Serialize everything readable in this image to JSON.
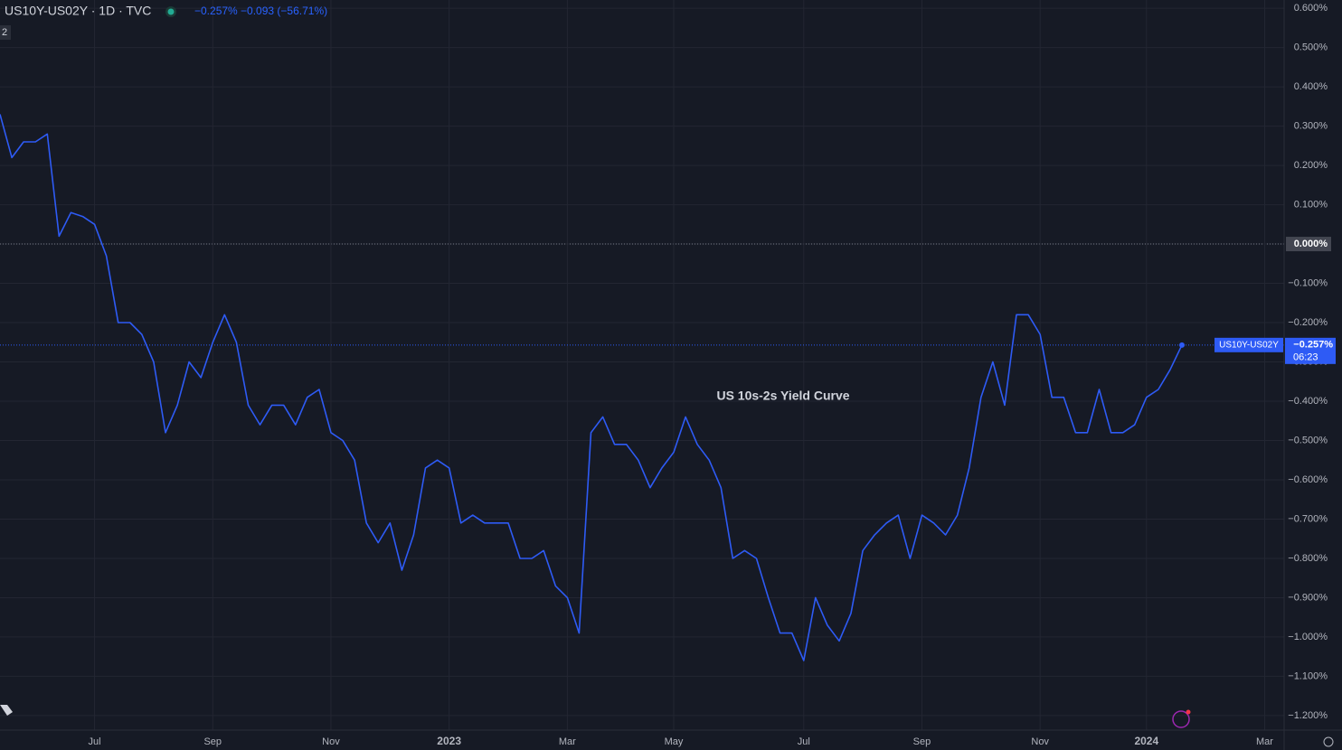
{
  "chart_data": {
    "type": "line",
    "symbol": "US10Y-US02Y · 1D · TVC",
    "change": "−0.257% −0.093 (−56.71%)",
    "pane_label": "2",
    "annotation": "US 10s-2s Yield Curve",
    "last_name": "US10Y-US02Y",
    "last_value_label": "−0.257%",
    "countdown": "06:23",
    "zero_line": true,
    "grid": true,
    "categories": [
      null,
      null,
      null,
      null,
      null,
      null,
      null,
      null,
      "Jul",
      null,
      null,
      null,
      null,
      null,
      null,
      null,
      null,
      null,
      "Sep",
      null,
      null,
      null,
      null,
      null,
      null,
      null,
      null,
      null,
      "Nov",
      null,
      null,
      null,
      null,
      null,
      null,
      null,
      null,
      null,
      "2023",
      null,
      null,
      null,
      null,
      null,
      null,
      null,
      null,
      null,
      "Mar",
      null,
      null,
      null,
      null,
      null,
      null,
      null,
      null,
      "May",
      null,
      null,
      null,
      null,
      null,
      null,
      null,
      null,
      null,
      null,
      "Jul",
      null,
      null,
      null,
      null,
      null,
      null,
      null,
      null,
      null,
      "Sep",
      null,
      null,
      null,
      null,
      null,
      null,
      null,
      null,
      null,
      "Nov",
      null,
      null,
      null,
      null,
      null,
      null,
      null,
      null,
      "2024",
      null,
      null,
      null,
      null,
      null,
      null,
      null,
      null,
      null,
      "Mar",
      null
    ],
    "series": [
      {
        "name": "US10Y-US02Y",
        "color": "#2e5bf5",
        "values": [
          0.33,
          0.22,
          0.26,
          0.26,
          0.28,
          0.02,
          0.08,
          0.07,
          0.05,
          -0.03,
          -0.2,
          -0.2,
          -0.23,
          -0.3,
          -0.48,
          -0.41,
          -0.3,
          -0.34,
          -0.25,
          -0.18,
          -0.25,
          -0.41,
          -0.46,
          -0.41,
          -0.41,
          -0.46,
          -0.39,
          -0.37,
          -0.48,
          -0.5,
          -0.55,
          -0.71,
          -0.76,
          -0.71,
          -0.83,
          -0.74,
          -0.57,
          -0.55,
          -0.57,
          -0.71,
          -0.69,
          -0.71,
          -0.71,
          -0.71,
          -0.8,
          -0.8,
          -0.78,
          -0.87,
          -0.9,
          -0.99,
          -0.48,
          -0.44,
          -0.51,
          -0.51,
          -0.55,
          -0.62,
          -0.57,
          -0.53,
          -0.44,
          -0.51,
          -0.55,
          -0.62,
          -0.8,
          -0.78,
          -0.8,
          -0.9,
          -0.99,
          -0.99,
          -1.06,
          -0.9,
          -0.97,
          -1.01,
          -0.94,
          -0.78,
          -0.74,
          -0.71,
          -0.69,
          -0.8,
          -0.69,
          -0.71,
          -0.74,
          -0.69,
          -0.57,
          -0.39,
          -0.3,
          -0.41,
          -0.18,
          -0.18,
          -0.23,
          -0.39,
          -0.39,
          -0.48,
          -0.48,
          -0.37,
          -0.48,
          -0.48,
          -0.46,
          -0.39,
          -0.37,
          -0.32,
          -0.257,
          null,
          null,
          null,
          null,
          null,
          null,
          null,
          null
        ]
      }
    ],
    "ylim": [
      -1.237,
      0.621
    ],
    "yticks": [
      {
        "value": 0.6,
        "label": "0.600%"
      },
      {
        "value": 0.5,
        "label": "0.500%"
      },
      {
        "value": 0.4,
        "label": "0.400%"
      },
      {
        "value": 0.3,
        "label": "0.300%"
      },
      {
        "value": 0.2,
        "label": "0.200%"
      },
      {
        "value": 0.1,
        "label": "0.100%"
      },
      {
        "value": 0,
        "label": "0.000%"
      },
      {
        "value": -0.1,
        "label": "−0.100%"
      },
      {
        "value": -0.2,
        "label": "−0.200%"
      },
      {
        "value": -0.3,
        "label": "−0.300%"
      },
      {
        "value": -0.4,
        "label": "−0.400%"
      },
      {
        "value": -0.5,
        "label": "−0.500%"
      },
      {
        "value": -0.6,
        "label": "−0.600%"
      },
      {
        "value": -0.7,
        "label": "−0.700%"
      },
      {
        "value": -0.8,
        "label": "−0.800%"
      },
      {
        "value": -0.9,
        "label": "−0.900%"
      },
      {
        "value": -1.0,
        "label": "−1.000%"
      },
      {
        "value": -1.1,
        "label": "−1.100%"
      },
      {
        "value": -1.2,
        "label": "−1.200%"
      }
    ]
  }
}
